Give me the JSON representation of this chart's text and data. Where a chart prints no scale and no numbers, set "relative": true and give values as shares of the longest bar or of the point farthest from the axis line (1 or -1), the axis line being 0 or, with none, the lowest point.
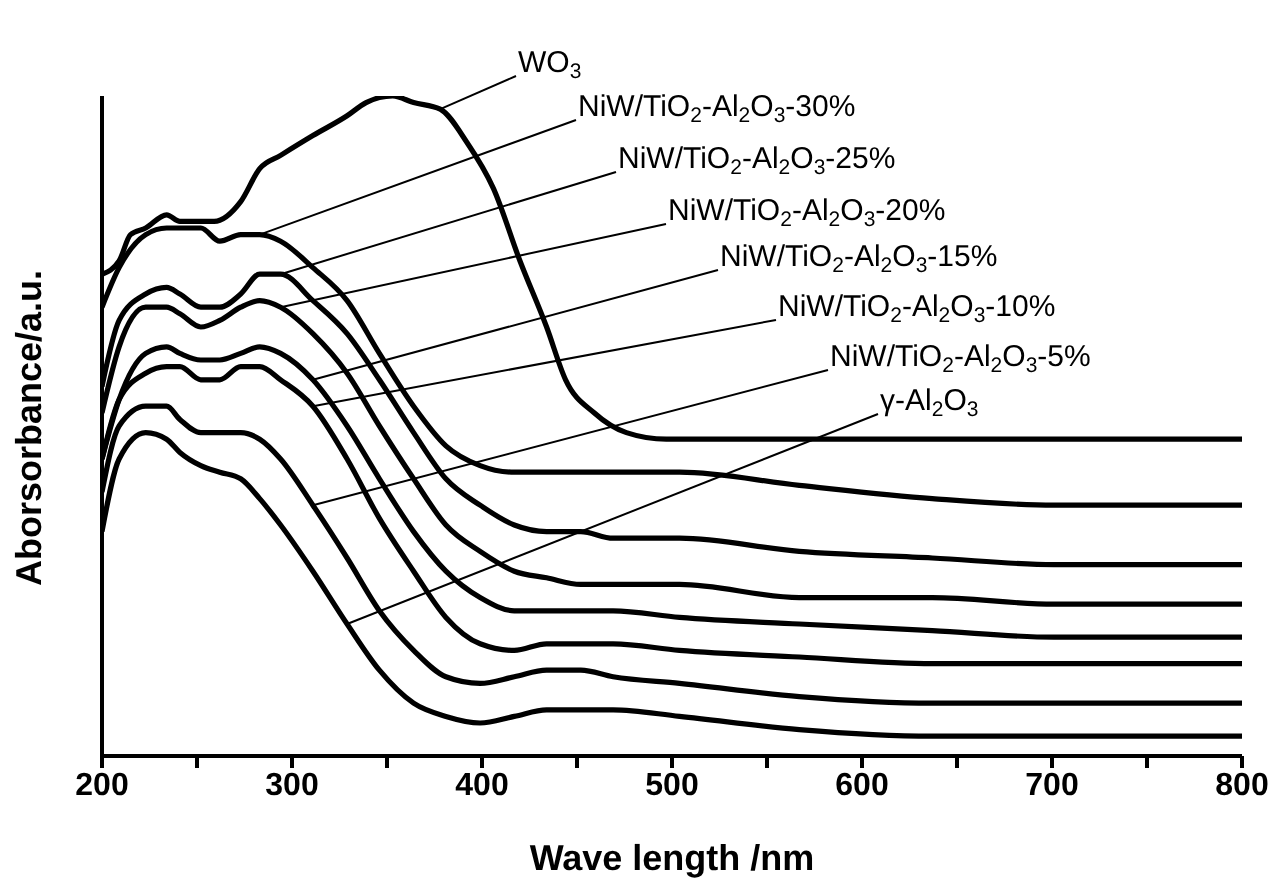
{
  "chart_data": {
    "type": "line",
    "relative": true,
    "xlabel": "Wave length /nm",
    "ylabel": "Aborsorbance/a.u.",
    "xlim": [
      200,
      800
    ],
    "xticks": [
      200,
      {
        "value": 250,
        "label": null
      },
      300,
      {
        "value": 350,
        "label": null
      },
      400,
      {
        "value": 450,
        "label": null
      },
      500,
      {
        "value": 550,
        "label": null
      },
      600,
      {
        "value": 650,
        "label": null
      },
      700,
      {
        "value": 750,
        "label": null
      },
      800
    ],
    "x": [
      200,
      209,
      223,
      234,
      241,
      252,
      262,
      273,
      283,
      294,
      311,
      329,
      346,
      364,
      381,
      399,
      417,
      434,
      452,
      469,
      504,
      567,
      637,
      701,
      743,
      800
    ],
    "legend": false,
    "grid": false,
    "marker": "none",
    "line_style": "solid",
    "series": [
      {
        "name": "WO$_{3}$",
        "color": "#000000",
        "x": [
          200,
          209,
          215,
          223,
          234,
          241,
          259,
          273,
          283,
          294,
          311,
          329,
          339,
          353,
          364,
          378,
          392,
          406,
          420,
          434,
          444,
          459,
          476,
          497,
          600,
          700,
          800
        ],
        "values": [
          0.73,
          0.75,
          0.79,
          0.8,
          0.82,
          0.81,
          0.81,
          0.84,
          0.89,
          0.91,
          0.94,
          0.97,
          0.99,
          1,
          0.99,
          0.98,
          0.93,
          0.86,
          0.75,
          0.65,
          0.57,
          0.52,
          0.49,
          0.48,
          0.48,
          0.48,
          0.48
        ]
      },
      {
        "name": "NiW/TiO$_{2}$-Al$_{2}$O$_{3}$-30%",
        "color": "#000000",
        "values": [
          0.68,
          0.74,
          0.79,
          0.8,
          0.8,
          0.8,
          0.78,
          0.79,
          0.79,
          0.78,
          0.74,
          0.69,
          0.61,
          0.53,
          0.47,
          0.44,
          0.43,
          0.43,
          0.43,
          0.43,
          0.43,
          0.41,
          0.39,
          0.38,
          0.38,
          0.38
        ]
      },
      {
        "name": "NiW/TiO$_{2}$-Al$_{2}$O$_{3}$-25%",
        "color": "#000000",
        "values": [
          0.56,
          0.66,
          0.7,
          0.71,
          0.7,
          0.68,
          0.68,
          0.7,
          0.73,
          0.73,
          0.69,
          0.64,
          0.57,
          0.49,
          0.42,
          0.38,
          0.35,
          0.34,
          0.34,
          0.33,
          0.33,
          0.31,
          0.3,
          0.29,
          0.29,
          0.29
        ]
      },
      {
        "name": "NiW/TiO$_{2}$-Al$_{2}$O$_{3}$-20%",
        "color": "#000000",
        "values": [
          0.52,
          0.62,
          0.68,
          0.68,
          0.67,
          0.65,
          0.66,
          0.68,
          0.69,
          0.68,
          0.64,
          0.58,
          0.5,
          0.42,
          0.35,
          0.31,
          0.28,
          0.27,
          0.26,
          0.26,
          0.26,
          0.24,
          0.24,
          0.23,
          0.23,
          0.23
        ]
      },
      {
        "name": "NiW/TiO$_{2}$-Al$_{2}$O$_{3}$-15%",
        "color": "#000000",
        "values": [
          0.45,
          0.54,
          0.61,
          0.62,
          0.61,
          0.6,
          0.6,
          0.61,
          0.62,
          0.61,
          0.57,
          0.5,
          0.42,
          0.34,
          0.28,
          0.24,
          0.22,
          0.22,
          0.22,
          0.22,
          0.21,
          0.2,
          0.19,
          0.18,
          0.18,
          0.18
        ]
      },
      {
        "name": "NiW/TiO$_{2}$-Al$_{2}$O$_{3}$-10%",
        "color": "#000000",
        "values": [
          0.45,
          0.54,
          0.58,
          0.59,
          0.59,
          0.57,
          0.57,
          0.59,
          0.59,
          0.57,
          0.53,
          0.45,
          0.36,
          0.28,
          0.21,
          0.17,
          0.16,
          0.17,
          0.17,
          0.17,
          0.16,
          0.15,
          0.14,
          0.14,
          0.14,
          0.14
        ]
      },
      {
        "name": "NiW/TiO$_{2}$-Al$_{2}$O$_{3}$-5%",
        "color": "#000000",
        "values": [
          0.4,
          0.5,
          0.53,
          0.53,
          0.51,
          0.49,
          0.49,
          0.49,
          0.48,
          0.45,
          0.38,
          0.3,
          0.22,
          0.16,
          0.12,
          0.11,
          0.12,
          0.13,
          0.13,
          0.12,
          0.11,
          0.09,
          0.08,
          0.08,
          0.08,
          0.08
        ]
      },
      {
        "name": "γ-Al$_{2}$O$_{3}$",
        "color": "#000000",
        "values": [
          0.34,
          0.45,
          0.49,
          0.48,
          0.46,
          0.44,
          0.43,
          0.42,
          0.39,
          0.35,
          0.28,
          0.2,
          0.13,
          0.08,
          0.06,
          0.05,
          0.06,
          0.07,
          0.07,
          0.07,
          0.06,
          0.04,
          0.03,
          0.03,
          0.03,
          0.03
        ]
      }
    ]
  }
}
